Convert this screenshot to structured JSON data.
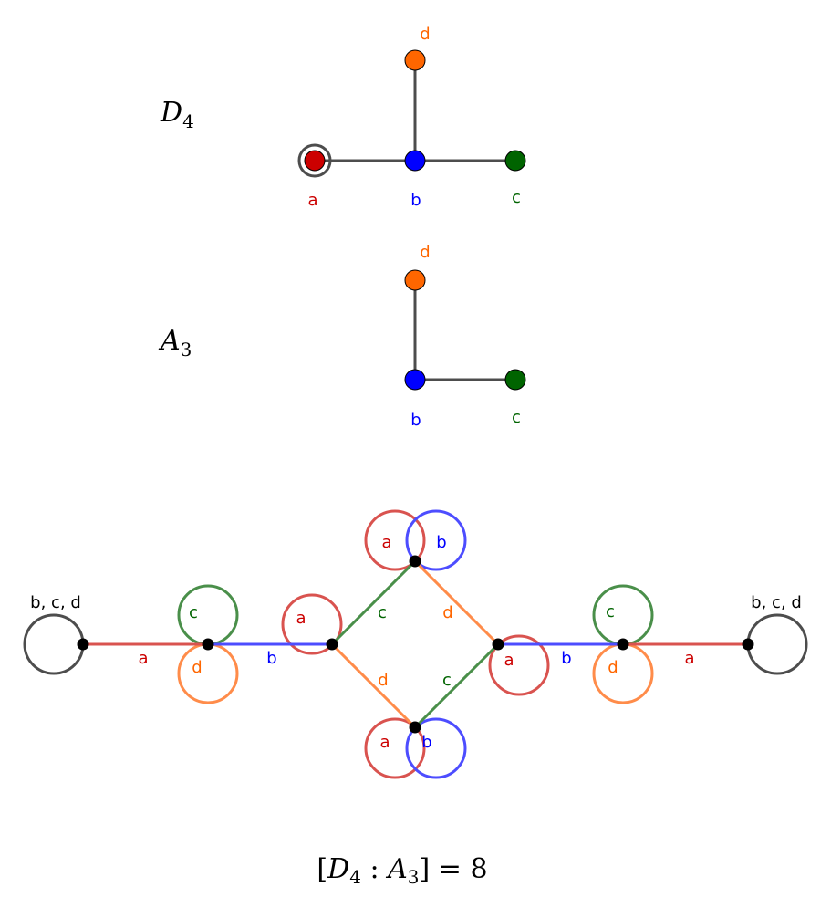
{
  "colors": {
    "a": "#cc0000",
    "b": "#0000ff",
    "c": "#006400",
    "d": "#ff6600",
    "tree_edge": "#4d4d4d",
    "vertex": "#000000"
  },
  "d4": {
    "name_main": "D",
    "name_sub": "4",
    "nodes": {
      "a": "a",
      "b": "b",
      "c": "c",
      "d": "d"
    }
  },
  "a3": {
    "name_main": "A",
    "name_sub": "3",
    "nodes": {
      "b": "b",
      "c": "c",
      "d": "d"
    }
  },
  "graph": {
    "end_loop_label": "b, c, d",
    "labels": {
      "a": "a",
      "b": "b",
      "c": "c",
      "d": "d"
    }
  },
  "formula": {
    "open": "[",
    "g1": "D",
    "g1_sub": "4",
    "sep": " : ",
    "g2": "A",
    "g2_sub": "3",
    "close": "]",
    "equals": " = ",
    "value": "8"
  }
}
